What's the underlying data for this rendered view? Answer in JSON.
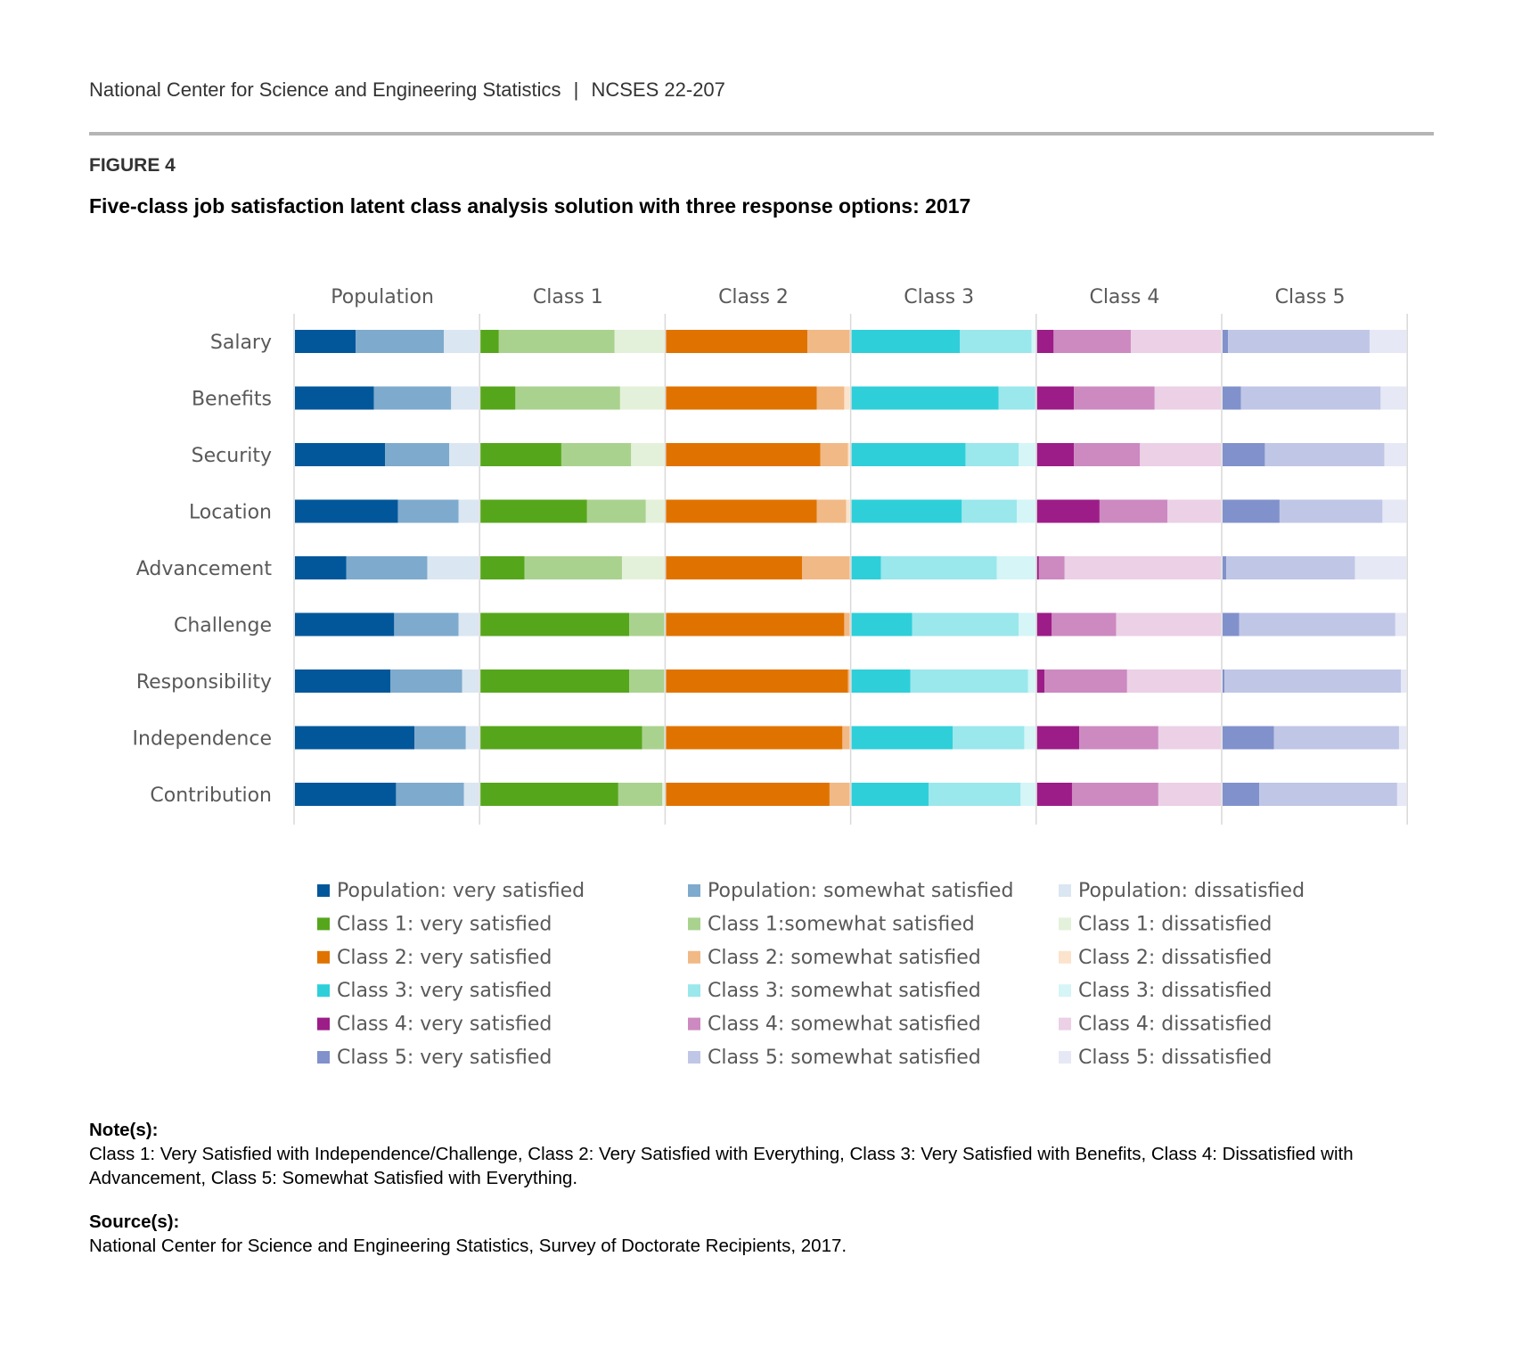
{
  "header": {
    "org": "National Center for Science and Engineering Statistics",
    "separator": "|",
    "report_id": "NCSES 22-207"
  },
  "figure_label": "FIGURE 4",
  "title": "Five-class job satisfaction latent class analysis solution with three response options: 2017",
  "notes": {
    "label": "Note(s):",
    "text": "Class 1: Very Satisfied with Independence/Challenge, Class 2: Very Satisfied with Everything, Class 3: Very Satisfied with Benefits, Class 4: Dissatisfied with Advancement, Class 5: Somewhat Satisfied with Everything."
  },
  "source": {
    "label": "Source(s):",
    "text": "National Center for Science and Engineering Statistics, Survey of Doctorate Recipients, 2017."
  },
  "chart_data": {
    "type": "bar",
    "orientation": "horizontal-stacked-small-multiples",
    "title": "Five-class job satisfaction latent class analysis solution with three response options: 2017",
    "categories": [
      "Salary",
      "Benefits",
      "Security",
      "Location",
      "Advancement",
      "Challenge",
      "Responsibility",
      "Independence",
      "Contribution"
    ],
    "panels": [
      {
        "name": "Population",
        "colors": [
          "#02579b",
          "#7eaacd",
          "#dae6f1"
        ],
        "series": [
          {
            "name": "Population: very satisfied",
            "values": [
              0.33,
              0.43,
              0.49,
              0.56,
              0.28,
              0.54,
              0.52,
              0.65,
              0.55
            ]
          },
          {
            "name": "Population: somewhat satisfied",
            "values": [
              0.48,
              0.42,
              0.35,
              0.33,
              0.44,
              0.35,
              0.39,
              0.28,
              0.37
            ]
          },
          {
            "name": "Population: dissatisfied",
            "values": [
              0.19,
              0.15,
              0.16,
              0.11,
              0.28,
              0.11,
              0.09,
              0.07,
              0.08
            ]
          }
        ]
      },
      {
        "name": "Class 1",
        "colors": [
          "#56a61c",
          "#aad28f",
          "#e4f1da"
        ],
        "series": [
          {
            "name": "Class 1: very satisfied",
            "values": [
              0.1,
              0.19,
              0.44,
              0.58,
              0.24,
              0.81,
              0.81,
              0.88,
              0.75
            ]
          },
          {
            "name": "Class 1:somewhat satisfied",
            "values": [
              0.63,
              0.57,
              0.38,
              0.32,
              0.53,
              0.19,
              0.19,
              0.12,
              0.24
            ]
          },
          {
            "name": "Class 1: dissatisfied",
            "values": [
              0.27,
              0.24,
              0.18,
              0.1,
              0.23,
              0.0,
              0.0,
              0.0,
              0.01
            ]
          }
        ]
      },
      {
        "name": "Class 2",
        "colors": [
          "#e07300",
          "#f1b986",
          "#fbe3cc"
        ],
        "series": [
          {
            "name": "Class 2: very satisfied",
            "values": [
              0.77,
              0.82,
              0.84,
              0.82,
              0.74,
              0.97,
              0.99,
              0.96,
              0.89
            ]
          },
          {
            "name": "Class 2: somewhat satisfied",
            "values": [
              0.23,
              0.15,
              0.15,
              0.16,
              0.26,
              0.03,
              0.01,
              0.04,
              0.11
            ]
          },
          {
            "name": "Class 2: dissatisfied",
            "values": [
              0.0,
              0.03,
              0.01,
              0.02,
              0.0,
              0.0,
              0.0,
              0.0,
              0.0
            ]
          }
        ]
      },
      {
        "name": "Class 3",
        "colors": [
          "#2ecfd9",
          "#9ae7ec",
          "#d5f5f7"
        ],
        "series": [
          {
            "name": "Class 3: very satisfied",
            "values": [
              0.59,
              0.8,
              0.62,
              0.6,
              0.16,
              0.33,
              0.32,
              0.55,
              0.42
            ]
          },
          {
            "name": "Class 3: somewhat satisfied",
            "values": [
              0.39,
              0.2,
              0.29,
              0.3,
              0.63,
              0.58,
              0.64,
              0.39,
              0.5
            ]
          },
          {
            "name": "Class 3: dissatisfied",
            "values": [
              0.02,
              0.0,
              0.09,
              0.1,
              0.21,
              0.09,
              0.04,
              0.06,
              0.08
            ]
          }
        ]
      },
      {
        "name": "Class 4",
        "colors": [
          "#9c1d88",
          "#cc8ac1",
          "#ebd0e6"
        ],
        "series": [
          {
            "name": "Class 4: very satisfied",
            "values": [
              0.09,
              0.2,
              0.2,
              0.34,
              0.01,
              0.08,
              0.04,
              0.23,
              0.19
            ]
          },
          {
            "name": "Class 4: somewhat satisfied",
            "values": [
              0.42,
              0.44,
              0.36,
              0.37,
              0.14,
              0.35,
              0.45,
              0.43,
              0.47
            ]
          },
          {
            "name": "Class 4: dissatisfied",
            "values": [
              0.49,
              0.36,
              0.44,
              0.29,
              0.85,
              0.57,
              0.51,
              0.34,
              0.34
            ]
          }
        ]
      },
      {
        "name": "Class 5",
        "colors": [
          "#8191cc",
          "#c0c6e6",
          "#e6e8f5"
        ],
        "series": [
          {
            "name": "Class 5: very satisfied",
            "values": [
              0.03,
              0.1,
              0.23,
              0.31,
              0.02,
              0.09,
              0.01,
              0.28,
              0.2
            ]
          },
          {
            "name": "Class 5: somewhat satisfied",
            "values": [
              0.77,
              0.76,
              0.65,
              0.56,
              0.7,
              0.85,
              0.96,
              0.68,
              0.75
            ]
          },
          {
            "name": "Class 5: dissatisfied",
            "values": [
              0.2,
              0.14,
              0.12,
              0.13,
              0.28,
              0.06,
              0.03,
              0.04,
              0.05
            ]
          }
        ]
      }
    ],
    "xlim": [
      0,
      1
    ],
    "grid": true,
    "legend_position": "bottom"
  }
}
